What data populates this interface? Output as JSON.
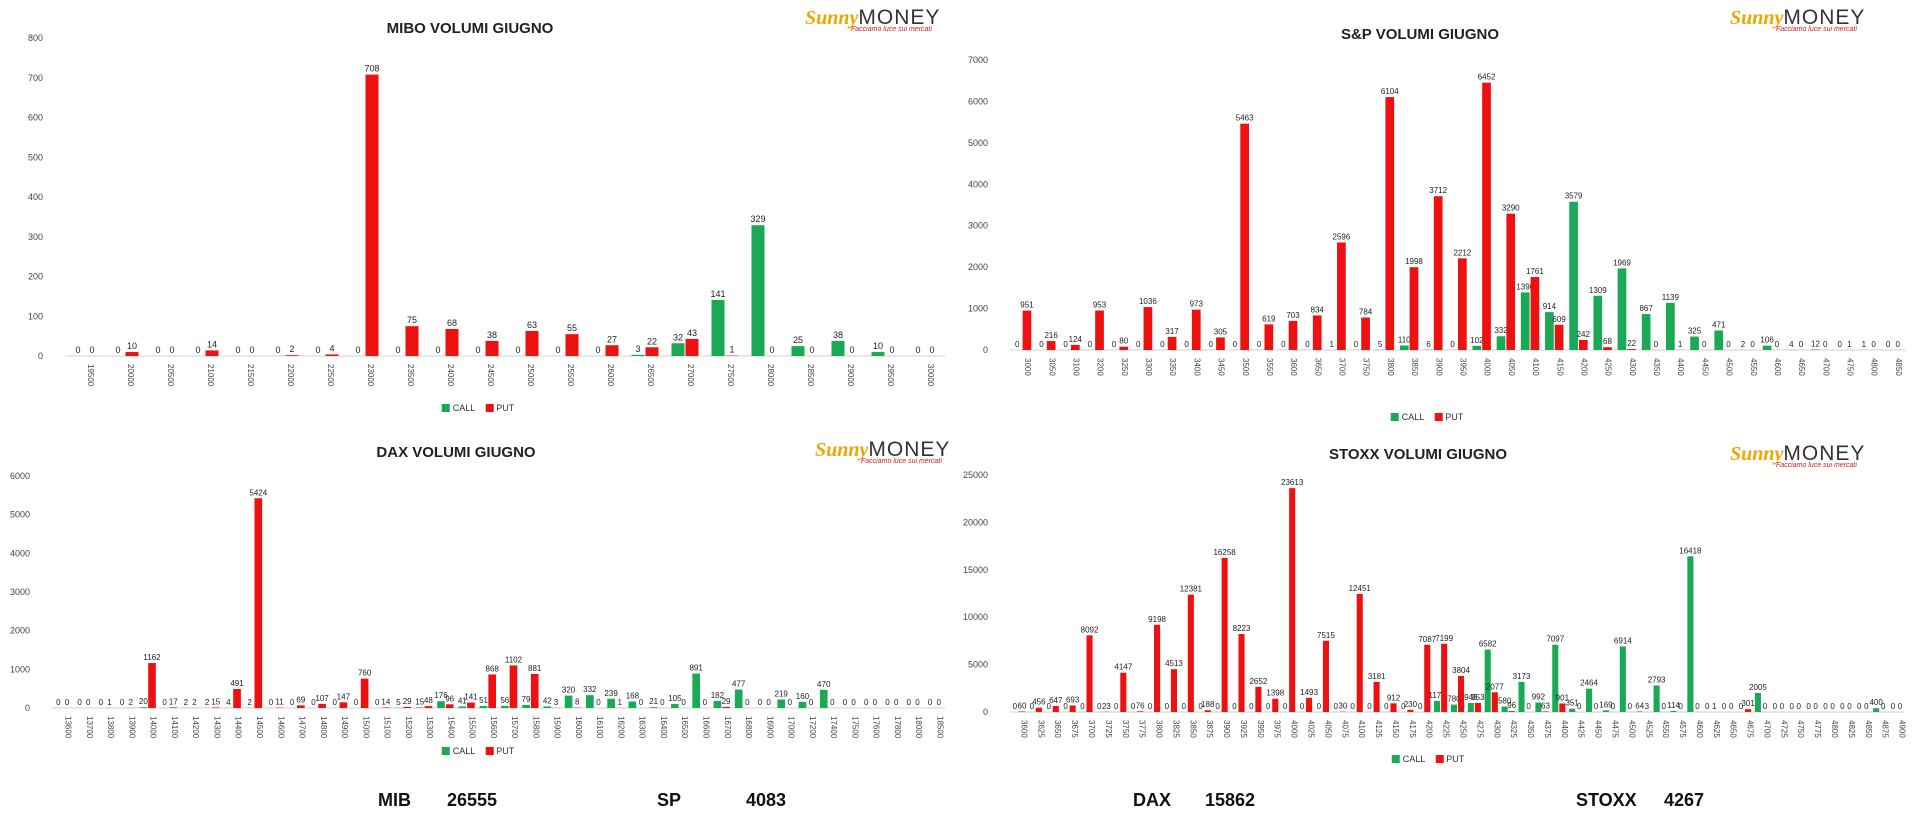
{
  "colors": {
    "call": "#1aaa55",
    "put": "#ee1111"
  },
  "logo": {
    "sunny": "Sunny",
    "money": "MONEY",
    "tagline": "Facciamo luce sui mercati"
  },
  "legend": {
    "call": "CALL",
    "put": "PUT"
  },
  "footer": [
    {
      "name": "MIB",
      "value": "26555"
    },
    {
      "name": "SP",
      "value": "4083"
    },
    {
      "name": "DAX",
      "value": "15862"
    },
    {
      "name": "STOXX",
      "value": "4267"
    }
  ],
  "chart_data": [
    {
      "type": "bar",
      "title": "MIBO VOLUMI GIUGNO",
      "ylim": [
        0,
        800
      ],
      "yticks": [
        0,
        100,
        200,
        300,
        400,
        500,
        600,
        700,
        800
      ],
      "categories": [
        "19500",
        "20000",
        "20500",
        "21000",
        "21500",
        "22000",
        "22500",
        "23000",
        "23500",
        "24000",
        "24500",
        "25000",
        "25500",
        "26000",
        "26500",
        "27000",
        "27500",
        "28000",
        "28500",
        "29000",
        "29500",
        "30000"
      ],
      "series": [
        {
          "name": "CALL",
          "values": [
            0,
            0,
            0,
            0,
            0,
            0,
            0,
            0,
            0,
            0,
            0,
            0,
            0,
            0,
            3,
            32,
            141,
            329,
            25,
            38,
            10,
            0
          ]
        },
        {
          "name": "PUT",
          "values": [
            0,
            10,
            0,
            14,
            0,
            2,
            4,
            708,
            75,
            68,
            38,
            63,
            55,
            27,
            22,
            43,
            1,
            0,
            0,
            0,
            0,
            0
          ]
        }
      ]
    },
    {
      "type": "bar",
      "title": "S&P VOLUMI GIUGNO",
      "ylim": [
        0,
        7000
      ],
      "yticks": [
        0,
        1000,
        2000,
        3000,
        4000,
        5000,
        6000,
        7000
      ],
      "categories": [
        "3000",
        "3050",
        "3100",
        "3200",
        "3250",
        "3300",
        "3350",
        "3400",
        "3450",
        "3500",
        "3550",
        "3600",
        "3650",
        "3700",
        "3750",
        "3800",
        "3850",
        "3900",
        "3950",
        "4000",
        "4050",
        "4100",
        "4150",
        "4200",
        "4250",
        "4300",
        "4350",
        "4400",
        "4450",
        "4500",
        "4550",
        "4600",
        "4650",
        "4700",
        "4750",
        "4800",
        "4850"
      ],
      "series": [
        {
          "name": "CALL",
          "values": [
            0,
            0,
            0,
            0,
            0,
            0,
            0,
            0,
            0,
            0,
            0,
            0,
            0,
            1,
            0,
            5,
            110,
            6,
            0,
            102,
            332,
            1390,
            914,
            3579,
            1309,
            1969,
            867,
            1139,
            325,
            471,
            2,
            106,
            4,
            12,
            0,
            1,
            0
          ]
        },
        {
          "name": "PUT",
          "values": [
            951,
            216,
            124,
            953,
            80,
            1036,
            317,
            973,
            305,
            5463,
            619,
            703,
            834,
            2596,
            784,
            6104,
            1998,
            3712,
            2212,
            6452,
            3290,
            1761,
            609,
            242,
            68,
            22,
            0,
            1,
            0,
            0,
            0,
            0,
            0,
            0,
            1,
            0,
            0
          ]
        }
      ]
    },
    {
      "type": "bar",
      "title": "DAX VOLUMI GIUGNO",
      "ylim": [
        0,
        6000
      ],
      "yticks": [
        0,
        1000,
        2000,
        3000,
        4000,
        5000,
        6000
      ],
      "categories": [
        "13600",
        "13700",
        "13800",
        "13900",
        "14000",
        "14100",
        "14200",
        "14300",
        "14400",
        "14500",
        "14600",
        "14700",
        "14800",
        "14900",
        "15000",
        "15100",
        "15200",
        "15300",
        "15400",
        "15500",
        "15600",
        "15700",
        "15800",
        "15900",
        "16000",
        "16100",
        "16200",
        "16300",
        "16400",
        "16500",
        "16600",
        "16700",
        "16800",
        "16900",
        "17000",
        "17200",
        "17400",
        "17500",
        "17600",
        "17800",
        "18000",
        "18500"
      ],
      "series": [
        {
          "name": "CALL",
          "values": [
            0,
            0,
            0,
            0,
            20,
            0,
            2,
            2,
            4,
            2,
            0,
            0,
            0,
            0,
            0,
            0,
            5,
            15,
            176,
            41,
            51,
            56,
            79,
            42,
            320,
            332,
            239,
            168,
            21,
            105,
            891,
            182,
            477,
            0,
            219,
            160,
            470,
            0,
            0,
            0,
            0,
            0
          ]
        },
        {
          "name": "PUT",
          "values": [
            0,
            0,
            1,
            2,
            1162,
            17,
            2,
            15,
            491,
            5424,
            11,
            69,
            107,
            147,
            760,
            14,
            29,
            48,
            96,
            141,
            868,
            1102,
            881,
            3,
            8,
            0,
            1,
            0,
            0,
            0,
            0,
            29,
            0,
            0,
            0,
            0,
            0,
            0,
            0,
            0,
            0,
            0
          ]
        }
      ]
    },
    {
      "type": "bar",
      "title": "STOXX VOLUMI GIUGNO",
      "ylim": [
        0,
        25000
      ],
      "yticks": [
        0,
        5000,
        10000,
        15000,
        20000,
        25000
      ],
      "categories": [
        "3600",
        "3625",
        "3650",
        "3675",
        "3700",
        "3725",
        "3750",
        "3775",
        "3800",
        "3825",
        "3850",
        "3875",
        "3900",
        "3925",
        "3950",
        "3975",
        "4000",
        "4025",
        "4050",
        "4075",
        "4100",
        "4125",
        "4150",
        "4175",
        "4200",
        "4225",
        "4250",
        "4275",
        "4300",
        "4325",
        "4350",
        "4375",
        "4400",
        "4425",
        "4450",
        "4475",
        "4500",
        "4525",
        "4550",
        "4575",
        "4600",
        "4625",
        "4650",
        "4675",
        "4700",
        "4725",
        "4750",
        "4775",
        "4800",
        "4825",
        "4850",
        "4875",
        "4900"
      ],
      "series": [
        {
          "name": "CALL",
          "values": [
            0,
            0,
            0,
            0,
            0,
            0,
            0,
            0,
            0,
            0,
            0,
            0,
            0,
            0,
            0,
            0,
            0,
            0,
            0,
            0,
            0,
            0,
            0,
            0,
            0,
            1170,
            780,
            945,
            6582,
            580,
            3173,
            992,
            7097,
            351,
            2464,
            169,
            6914,
            64,
            2793,
            114,
            16418,
            0,
            0,
            0,
            2005,
            0,
            0,
            0,
            0,
            0,
            0,
            400,
            0
          ]
        },
        {
          "name": "PUT",
          "values": [
            60,
            456,
            647,
            693,
            8092,
            23,
            4147,
            76,
            9198,
            4513,
            12381,
            188,
            16258,
            8223,
            2652,
            1398,
            23613,
            1493,
            7515,
            30,
            12451,
            3181,
            912,
            230,
            7087,
            7199,
            3804,
            953,
            2077,
            96,
            0,
            63,
            901,
            0,
            0,
            0,
            0,
            3,
            0,
            0,
            0,
            1,
            0,
            301,
            0,
            0,
            0,
            0,
            0,
            0,
            0,
            0,
            0
          ]
        }
      ]
    }
  ]
}
